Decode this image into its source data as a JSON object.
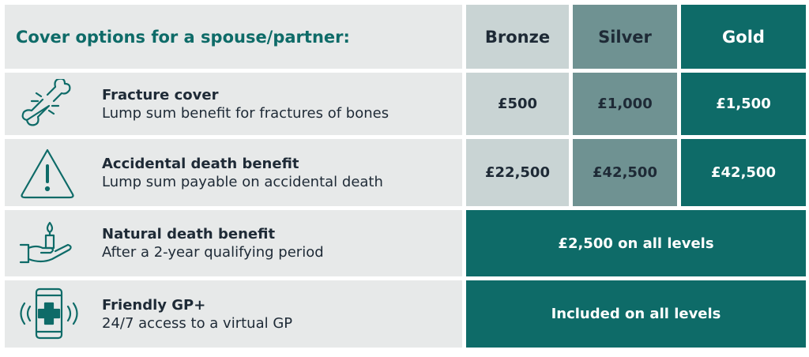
{
  "header": {
    "title": "Cover options for a spouse/partner:",
    "columns": [
      "Bronze",
      "Silver",
      "Gold"
    ]
  },
  "rows": [
    {
      "title": "Fracture cover",
      "subtitle": "Lump sum benefit for fractures of bones",
      "values": [
        "£500",
        "£1,000",
        "£1,500"
      ]
    },
    {
      "title": "Accidental death benefit",
      "subtitle": "Lump sum payable on accidental death",
      "values": [
        "£22,500",
        "£42,500",
        "£42,500"
      ]
    },
    {
      "title": "Natural death benefit",
      "subtitle": "After a 2-year qualifying period",
      "value": "£2,500 on all levels"
    },
    {
      "title": "Friendly GP+",
      "subtitle": "24/7 access to a virtual GP",
      "value": "Included on all levels"
    }
  ]
}
